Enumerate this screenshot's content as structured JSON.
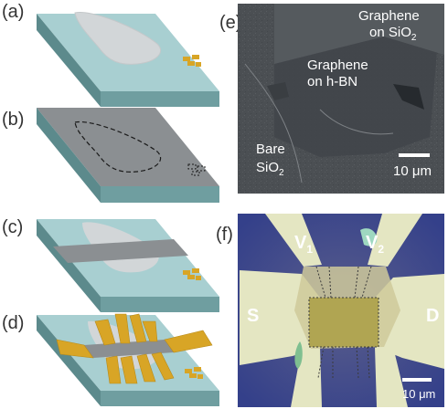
{
  "figure": {
    "panel_labels": {
      "a": "(a)",
      "b": "(b)",
      "c": "(c)",
      "d": "(d)",
      "e": "(e)",
      "f": "(f)"
    },
    "sem": {
      "label_graphene_sio2_line1": "Graphene",
      "label_graphene_sio2_line2": "on SiO",
      "label_graphene_sio2_sub": "2",
      "label_graphene_hbn_line1": "Graphene",
      "label_graphene_hbn_line2": "on h-BN",
      "label_bare_line1": "Bare",
      "label_bare_line2": "SiO",
      "label_bare_sub": "2",
      "scalebar": "10 μm"
    },
    "optical": {
      "v1": "V",
      "v1_sub": "1",
      "v2": "V",
      "v2_sub": "2",
      "source": "S",
      "drain": "D",
      "scalebar": "10 μm"
    },
    "colors": {
      "substrate_top": "#a8cfd1",
      "substrate_front": "#6f9ea0",
      "substrate_side": "#5c8a8c",
      "hbn_flake": "#d2d6d8",
      "graphene": "#8b8f92",
      "gold": "#d8a526",
      "sem_background": "#4b4f53",
      "optical_background": "#3e4a86",
      "optical_contact": "#e6e8c8"
    }
  }
}
